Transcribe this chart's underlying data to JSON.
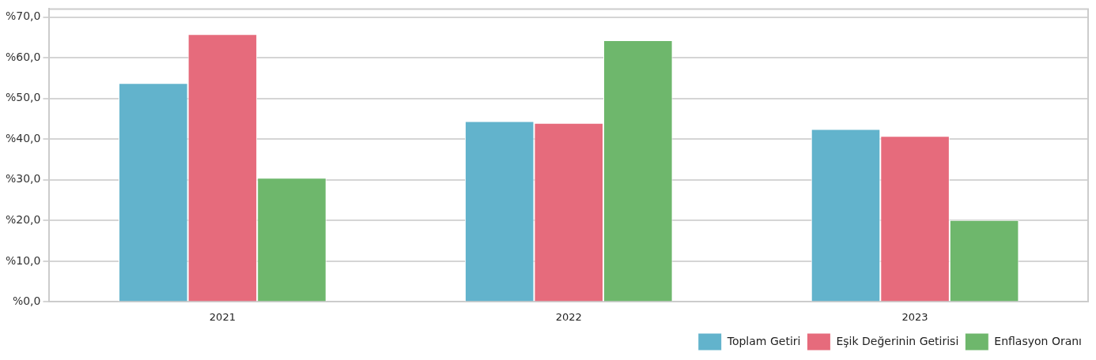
{
  "chart_data": {
    "type": "bar",
    "categories": [
      "2021",
      "2022",
      "2023"
    ],
    "series": [
      {
        "name": "Toplam Getiri",
        "color": "#62b3cc",
        "values": [
          53.8,
          44.4,
          42.5
        ]
      },
      {
        "name": "Eşik Değerinin Getirisi",
        "color": "#e66b7c",
        "values": [
          65.8,
          44.0,
          40.8
        ]
      },
      {
        "name": "Enflasyon Oranı",
        "color": "#6eb76c",
        "values": [
          30.5,
          64.3,
          20.1
        ]
      }
    ],
    "ylim": [
      0,
      72
    ],
    "yticks": [
      {
        "value": 0,
        "label": "%0,0"
      },
      {
        "value": 10,
        "label": "%10,0"
      },
      {
        "value": 20,
        "label": "%20,0"
      },
      {
        "value": 30,
        "label": "%30,0"
      },
      {
        "value": 40,
        "label": "%40,0"
      },
      {
        "value": 50,
        "label": "%50,0"
      },
      {
        "value": 60,
        "label": "%60,0"
      },
      {
        "value": 70,
        "label": "%70,0"
      }
    ],
    "grid": "y",
    "legend": "bottom right"
  }
}
